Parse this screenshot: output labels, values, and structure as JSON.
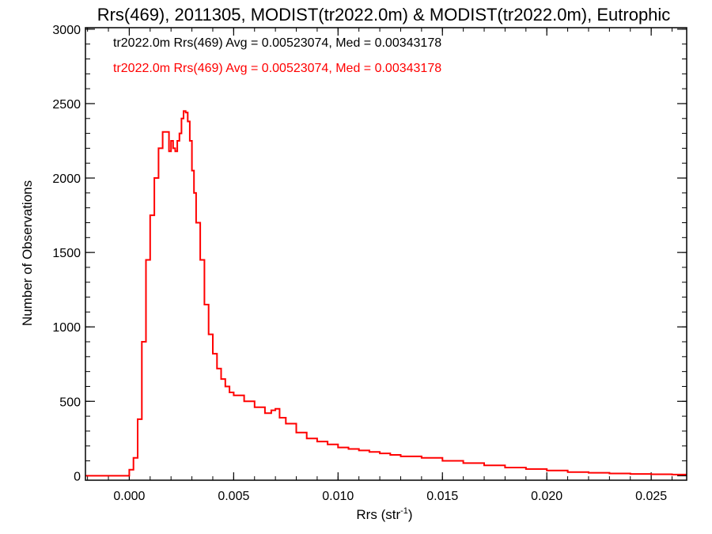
{
  "chart_data": {
    "type": "line",
    "title": "Rrs(469), 2011305, MODIST(tr2022.0m) & MODIST(tr2022.0m), Eutrophic",
    "xlabel_base": "Rrs (str",
    "xlabel_sup": "-1",
    "xlabel_end": ")",
    "ylabel": "Number of Observations",
    "xlim": [
      -0.0021,
      0.0267
    ],
    "ylim": [
      -30,
      3010
    ],
    "x_ticks": [
      {
        "v": 0.0,
        "label": "0.000"
      },
      {
        "v": 0.005,
        "label": "0.005"
      },
      {
        "v": 0.01,
        "label": "0.010"
      },
      {
        "v": 0.015,
        "label": "0.015"
      },
      {
        "v": 0.02,
        "label": "0.020"
      },
      {
        "v": 0.025,
        "label": "0.025"
      }
    ],
    "y_ticks": [
      {
        "v": 0,
        "label": "0"
      },
      {
        "v": 500,
        "label": "500"
      },
      {
        "v": 1000,
        "label": "1000"
      },
      {
        "v": 1500,
        "label": "1500"
      },
      {
        "v": 2000,
        "label": "2000"
      },
      {
        "v": 2500,
        "label": "2500"
      },
      {
        "v": 3000,
        "label": "3000"
      }
    ],
    "annotations": [
      {
        "text": "tr2022.0m Rrs(469) Avg = 0.00523074, Med = 0.00343178",
        "color": "#000000"
      },
      {
        "text": "tr2022.0m Rrs(469) Avg = 0.00523074, Med = 0.00343178",
        "color": "#ff0000"
      }
    ],
    "series": [
      {
        "color": "#ff0000",
        "x": [
          -0.0021,
          -0.0005,
          0.0,
          0.0002,
          0.0004,
          0.0006,
          0.0008,
          0.001,
          0.0012,
          0.0014,
          0.0016,
          0.0018,
          0.0019,
          0.002,
          0.0021,
          0.0022,
          0.0023,
          0.0024,
          0.0025,
          0.0026,
          0.0027,
          0.0028,
          0.0029,
          0.003,
          0.0031,
          0.0032,
          0.0034,
          0.0036,
          0.0038,
          0.004,
          0.0042,
          0.0044,
          0.0046,
          0.0048,
          0.005,
          0.0055,
          0.006,
          0.0065,
          0.0068,
          0.007,
          0.0072,
          0.0075,
          0.008,
          0.0085,
          0.009,
          0.0095,
          0.01,
          0.0105,
          0.011,
          0.0115,
          0.012,
          0.0125,
          0.013,
          0.014,
          0.015,
          0.016,
          0.017,
          0.018,
          0.019,
          0.02,
          0.021,
          0.022,
          0.023,
          0.024,
          0.025,
          0.026,
          0.0267
        ],
        "y": [
          0,
          0,
          40,
          120,
          380,
          900,
          1450,
          1750,
          2000,
          2200,
          2310,
          2310,
          2180,
          2250,
          2200,
          2180,
          2250,
          2300,
          2400,
          2450,
          2440,
          2380,
          2250,
          2050,
          1900,
          1700,
          1450,
          1150,
          950,
          820,
          720,
          650,
          600,
          560,
          540,
          500,
          460,
          420,
          440,
          450,
          390,
          350,
          290,
          250,
          230,
          210,
          190,
          180,
          170,
          160,
          150,
          140,
          130,
          120,
          100,
          85,
          70,
          55,
          45,
          35,
          25,
          20,
          15,
          12,
          10,
          8,
          8
        ]
      }
    ]
  }
}
